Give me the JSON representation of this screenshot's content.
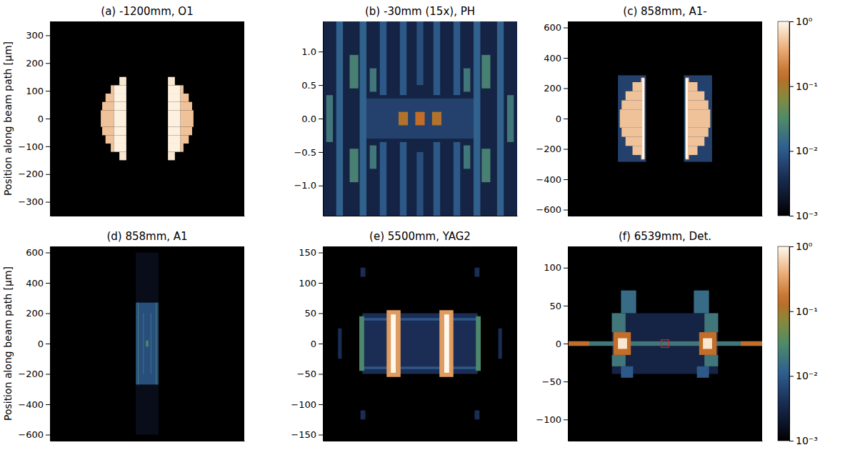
{
  "chart_data": [
    {
      "type": "heatmap",
      "title": "(a) -1200mm, O1",
      "y_label": "Position along beam path [µm]",
      "xlim": [
        -350,
        350
      ],
      "ylim": [
        -350,
        350
      ],
      "tick_labels": "y",
      "yticks": [
        {
          "value": -300,
          "label": "−300"
        },
        {
          "value": -200,
          "label": "−200"
        },
        {
          "value": -100,
          "label": "−100"
        },
        0,
        100,
        200,
        300
      ],
      "cells": [
        [
          -100,
          -75,
          120,
          150,
          0.8
        ],
        [
          -131,
          -120,
          90,
          120,
          0.5
        ],
        [
          -120,
          -75,
          90,
          120,
          0.9
        ],
        [
          -150,
          -120,
          60,
          90,
          0.5
        ],
        [
          -120,
          -75,
          60,
          90,
          0.9
        ],
        [
          -162,
          -120,
          30,
          60,
          0.5
        ],
        [
          -120,
          -75,
          30,
          60,
          0.9
        ],
        [
          -167,
          -120,
          0,
          30,
          0.5
        ],
        [
          -120,
          -75,
          0,
          30,
          0.9
        ],
        [
          -100,
          -75,
          -150,
          -120,
          0.8
        ],
        [
          -131,
          -120,
          -120,
          -90,
          0.5
        ],
        [
          -120,
          -75,
          -120,
          -90,
          0.9
        ],
        [
          -150,
          -120,
          -90,
          -60,
          0.5
        ],
        [
          -120,
          -75,
          -90,
          -60,
          0.9
        ],
        [
          -162,
          -120,
          -60,
          -30,
          0.5
        ],
        [
          -120,
          -75,
          -60,
          -30,
          0.9
        ],
        [
          -167,
          -120,
          -30,
          0,
          0.5
        ],
        [
          -120,
          -75,
          -30,
          0,
          0.9
        ],
        [
          75,
          100,
          120,
          150,
          0.8
        ],
        [
          120,
          131,
          90,
          120,
          0.5
        ],
        [
          75,
          120,
          90,
          120,
          0.9
        ],
        [
          120,
          150,
          60,
          90,
          0.5
        ],
        [
          75,
          120,
          60,
          90,
          0.9
        ],
        [
          120,
          162,
          30,
          60,
          0.5
        ],
        [
          75,
          120,
          30,
          60,
          0.9
        ],
        [
          120,
          167,
          0,
          30,
          0.5
        ],
        [
          75,
          120,
          0,
          30,
          0.9
        ],
        [
          75,
          100,
          -150,
          -120,
          0.8
        ],
        [
          120,
          131,
          -120,
          -90,
          0.5
        ],
        [
          75,
          120,
          -120,
          -90,
          0.9
        ],
        [
          120,
          150,
          -90,
          -60,
          0.5
        ],
        [
          75,
          120,
          -90,
          -60,
          0.9
        ],
        [
          120,
          162,
          -60,
          -30,
          0.5
        ],
        [
          75,
          120,
          -60,
          -30,
          0.9
        ],
        [
          120,
          167,
          -30,
          0,
          0.5
        ],
        [
          75,
          120,
          -30,
          0,
          0.9
        ]
      ]
    },
    {
      "type": "heatmap",
      "title": "(b) -30mm (15x), PH",
      "xlim": [
        -1.45,
        1.45
      ],
      "ylim": [
        -1.45,
        1.45
      ],
      "tick_labels": "y",
      "yticks": [
        {
          "value": -1,
          "label": "−1.0"
        },
        {
          "value": -0.5,
          "label": "−0.5"
        },
        {
          "value": 0,
          "label": "0.0"
        },
        0.5,
        {
          "value": 1,
          "label": "1.0"
        }
      ],
      "cells": [
        [
          -1.45,
          1.45,
          -1.45,
          1.45,
          0.003
        ],
        [
          -0.8,
          0.8,
          -0.3,
          0.3,
          0.006
        ],
        [
          -1.25,
          -1.15,
          -1.45,
          1.45,
          0.012
        ],
        [
          1.15,
          1.25,
          -1.45,
          1.45,
          0.012
        ],
        [
          -0.9,
          -0.8,
          -1.45,
          1.45,
          0.012
        ],
        [
          0.8,
          0.9,
          -1.45,
          1.45,
          0.012
        ],
        [
          -0.6,
          -0.5,
          -1.45,
          -0.35,
          0.01
        ],
        [
          -0.6,
          -0.5,
          0.35,
          1.45,
          0.01
        ],
        [
          0.5,
          0.6,
          -1.45,
          -0.35,
          0.01
        ],
        [
          0.5,
          0.6,
          0.35,
          1.45,
          0.01
        ],
        [
          -0.3,
          -0.2,
          0.35,
          1.45,
          0.01
        ],
        [
          -0.3,
          -0.2,
          -1.45,
          -0.35,
          0.01
        ],
        [
          0.2,
          0.3,
          0.35,
          1.45,
          0.01
        ],
        [
          0.2,
          0.3,
          -1.45,
          -0.35,
          0.01
        ],
        [
          -0.05,
          0.05,
          0.5,
          1.45,
          0.008
        ],
        [
          -0.05,
          0.05,
          -1.45,
          -0.5,
          0.008
        ],
        [
          -1.05,
          -0.92,
          0.45,
          0.95,
          0.025
        ],
        [
          0.92,
          1.05,
          0.45,
          0.95,
          0.025
        ],
        [
          -1.05,
          -0.92,
          -0.95,
          -0.45,
          0.025
        ],
        [
          0.92,
          1.05,
          -0.95,
          -0.45,
          0.025
        ],
        [
          -1.4,
          -1.3,
          -0.35,
          0.35,
          0.02
        ],
        [
          1.3,
          1.4,
          -0.35,
          0.35,
          0.02
        ],
        [
          -0.75,
          -0.65,
          0.4,
          0.75,
          0.02
        ],
        [
          0.65,
          0.75,
          0.4,
          0.75,
          0.02
        ],
        [
          -0.75,
          -0.65,
          -0.75,
          -0.4,
          0.02
        ],
        [
          0.65,
          0.75,
          -0.75,
          -0.4,
          0.02
        ],
        [
          -0.32,
          -0.18,
          -0.1,
          0.1,
          0.12
        ],
        [
          -0.07,
          0.07,
          -0.1,
          0.1,
          0.15
        ],
        [
          0.18,
          0.32,
          -0.1,
          0.1,
          0.12
        ]
      ]
    },
    {
      "type": "heatmap",
      "title": "(c) 858mm, A1-",
      "xlim": [
        -640,
        640
      ],
      "ylim": [
        -640,
        640
      ],
      "tick_labels": "y",
      "yticks": [
        {
          "value": -600,
          "label": "−600"
        },
        {
          "value": -400,
          "label": "−400"
        },
        {
          "value": -200,
          "label": "−200"
        },
        0,
        200,
        400,
        600
      ],
      "colorbar": {
        "range": [
          0.001,
          1
        ],
        "log": true,
        "ticks": [
          {
            "value": 1,
            "label": "10⁰"
          },
          {
            "value": 0.1,
            "label": "10⁻¹"
          },
          {
            "value": 0.01,
            "label": "10⁻²"
          },
          {
            "value": 0.001,
            "label": "10⁻³"
          }
        ]
      },
      "cells": [
        [
          -310,
          -125,
          -285,
          285,
          0.006
        ],
        [
          125,
          310,
          -285,
          285,
          0.006
        ],
        [
          -158,
          -135,
          240,
          270,
          0.5
        ],
        [
          -214,
          -135,
          180,
          240,
          0.5
        ],
        [
          -260,
          -135,
          120,
          180,
          0.5
        ],
        [
          -286,
          -135,
          60,
          120,
          0.5
        ],
        [
          -298,
          -135,
          0,
          60,
          0.5
        ],
        [
          -158,
          -135,
          -270,
          -240,
          0.5
        ],
        [
          -214,
          -135,
          -240,
          -180,
          0.5
        ],
        [
          -260,
          -135,
          -180,
          -120,
          0.5
        ],
        [
          -286,
          -135,
          -120,
          -60,
          0.5
        ],
        [
          -298,
          -135,
          -60,
          0,
          0.5
        ],
        [
          135,
          158,
          240,
          270,
          0.5
        ],
        [
          135,
          214,
          180,
          240,
          0.5
        ],
        [
          135,
          260,
          120,
          180,
          0.5
        ],
        [
          135,
          286,
          60,
          120,
          0.5
        ],
        [
          135,
          298,
          0,
          60,
          0.5
        ],
        [
          135,
          158,
          -270,
          -240,
          0.5
        ],
        [
          135,
          214,
          -240,
          -180,
          0.5
        ],
        [
          135,
          260,
          -180,
          -120,
          0.5
        ],
        [
          135,
          286,
          -120,
          -60,
          0.5
        ],
        [
          135,
          298,
          -60,
          0,
          0.5
        ],
        [
          -150,
          -135,
          -265,
          265,
          1
        ],
        [
          135,
          150,
          -265,
          265,
          1
        ]
      ]
    },
    {
      "type": "heatmap",
      "title": "(d) 858mm, A1",
      "y_label": "Position along beam path [µm]",
      "xlim": [
        -640,
        640
      ],
      "ylim": [
        -640,
        640
      ],
      "tick_labels": "y",
      "yticks": [
        {
          "value": -600,
          "label": "−600"
        },
        {
          "value": -400,
          "label": "−400"
        },
        {
          "value": -200,
          "label": "−200"
        },
        0,
        200,
        400,
        600
      ],
      "cells": [
        [
          -75,
          75,
          -600,
          -270,
          0.0015
        ],
        [
          -75,
          75,
          270,
          600,
          0.0015
        ],
        [
          -75,
          75,
          -270,
          270,
          0.008
        ],
        [
          -62,
          -56,
          -270,
          270,
          0.02
        ],
        [
          56,
          62,
          -270,
          270,
          0.02
        ],
        [
          -28,
          -22,
          -200,
          200,
          0.015
        ],
        [
          22,
          28,
          -200,
          200,
          0.015
        ],
        [
          -8,
          8,
          -20,
          20,
          0.03
        ]
      ]
    },
    {
      "type": "heatmap",
      "title": "(e) 5500mm, YAG2",
      "xlim": [
        -160,
        160
      ],
      "ylim": [
        -160,
        160
      ],
      "tick_labels": "y",
      "yticks": [
        {
          "value": -150,
          "label": "−150"
        },
        {
          "value": -100,
          "label": "−100"
        },
        {
          "value": -50,
          "label": "−50"
        },
        0,
        50,
        100,
        150
      ],
      "cells": [
        [
          -95,
          95,
          -50,
          50,
          0.004
        ],
        [
          -95,
          95,
          -42,
          -38,
          0.01
        ],
        [
          -95,
          95,
          38,
          42,
          0.01
        ],
        [
          -100,
          -92,
          -45,
          45,
          0.03
        ],
        [
          92,
          100,
          -45,
          45,
          0.03
        ],
        [
          -55,
          -32,
          -55,
          55,
          0.3
        ],
        [
          32,
          55,
          -55,
          55,
          0.3
        ],
        [
          -48,
          -40,
          -48,
          48,
          1
        ],
        [
          40,
          48,
          -48,
          48,
          1
        ],
        [
          -135,
          -129,
          -25,
          25,
          0.004
        ],
        [
          129,
          135,
          -25,
          25,
          0.004
        ],
        [
          -98,
          -90,
          110,
          125,
          0.004
        ],
        [
          90,
          98,
          110,
          125,
          0.004
        ],
        [
          -98,
          -90,
          -125,
          -110,
          0.004
        ],
        [
          90,
          98,
          -125,
          -110,
          0.004
        ]
      ]
    },
    {
      "type": "heatmap",
      "title": "(f) 6539mm, Det.",
      "xlim": [
        -128,
        128
      ],
      "ylim": [
        -128,
        128
      ],
      "tick_labels": "y",
      "yticks": [
        {
          "value": -100,
          "label": "−100"
        },
        {
          "value": -50,
          "label": "−50"
        },
        0,
        50,
        100
      ],
      "colorbar": {
        "range": [
          0.001,
          1
        ],
        "log": true,
        "ticks": [
          {
            "value": 1,
            "label": "10⁰"
          },
          {
            "value": 0.1,
            "label": "10⁻¹"
          },
          {
            "value": 0.01,
            "label": "10⁻²"
          },
          {
            "value": 0.001,
            "label": "10⁻³"
          }
        ]
      },
      "marked_region": {
        "x": [
          -5,
          5
        ],
        "y": [
          -5,
          5
        ],
        "color": "#e02020"
      },
      "cells": [
        [
          -70,
          70,
          -40,
          40,
          0.003
        ],
        [
          -128,
          128,
          -3,
          3,
          0.02
        ],
        [
          -128,
          -100,
          -3,
          3,
          0.15
        ],
        [
          100,
          128,
          -3,
          3,
          0.15
        ],
        [
          -70,
          -52,
          15,
          40,
          0.02
        ],
        [
          52,
          70,
          15,
          40,
          0.02
        ],
        [
          -58,
          -38,
          40,
          70,
          0.015
        ],
        [
          38,
          58,
          40,
          70,
          0.015
        ],
        [
          -70,
          -52,
          -30,
          -15,
          0.02
        ],
        [
          52,
          70,
          -30,
          -15,
          0.02
        ],
        [
          -58,
          -42,
          -45,
          -30,
          0.01
        ],
        [
          42,
          58,
          -45,
          -30,
          0.01
        ],
        [
          -68,
          -45,
          -15,
          15,
          0.15
        ],
        [
          45,
          68,
          -15,
          15,
          0.15
        ],
        [
          -62,
          -50,
          -7,
          7,
          0.8
        ],
        [
          50,
          62,
          -7,
          7,
          0.8
        ]
      ]
    }
  ]
}
